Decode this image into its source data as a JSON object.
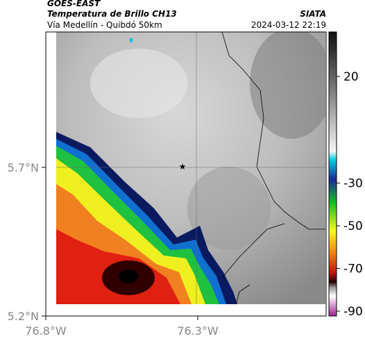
{
  "header": {
    "title": "GOES-EAST",
    "subtitle": "Temperatura de Brillo CH13",
    "route": "Vía Medellín - Quibdó 50km",
    "source": "SIATA",
    "timestamp": "2024-03-12 22:19"
  },
  "axes": {
    "y_labels": [
      "5.7°N",
      "5.2°N"
    ],
    "x_labels": [
      "76.8°W",
      "76.3°W"
    ]
  },
  "colorbar": {
    "ticks": [
      20,
      -30,
      -50,
      -70,
      -90
    ]
  }
}
